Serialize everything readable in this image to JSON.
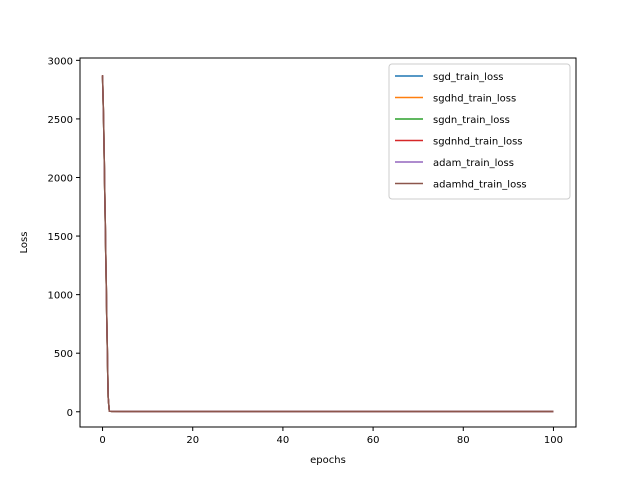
{
  "chart_data": {
    "type": "line",
    "title": "",
    "xlabel": "epochs",
    "ylabel": "Loss",
    "xlim": [
      -5,
      105
    ],
    "ylim": [
      -130,
      3020
    ],
    "xticks": [
      0,
      20,
      40,
      60,
      80,
      100
    ],
    "yticks": [
      0,
      500,
      1000,
      1500,
      2000,
      2500,
      3000
    ],
    "grid": false,
    "legend_position": "top-right",
    "series": [
      {
        "name": "sgd_train_loss",
        "color": "#1f77b4",
        "x": [
          0,
          0.25,
          0.5,
          0.75,
          1,
          1.25,
          1.5,
          2,
          5,
          10,
          20,
          40,
          60,
          80,
          100
        ],
        "y": [
          2860,
          2450,
          1850,
          1250,
          650,
          120,
          5,
          3,
          2,
          2,
          2,
          2,
          2,
          2,
          2
        ]
      },
      {
        "name": "sgdhd_train_loss",
        "color": "#ff7f0e",
        "x": [
          0,
          0.25,
          0.5,
          0.75,
          1,
          1.25,
          1.5,
          2,
          5,
          10,
          20,
          40,
          60,
          80,
          100
        ],
        "y": [
          2870,
          2460,
          1860,
          1260,
          660,
          125,
          5,
          3,
          2,
          2,
          2,
          2,
          2,
          2,
          2
        ]
      },
      {
        "name": "sgdn_train_loss",
        "color": "#2ca02c",
        "x": [
          0,
          0.25,
          0.5,
          0.75,
          1,
          1.25,
          1.5,
          2,
          5,
          10,
          20,
          40,
          60,
          80,
          100
        ],
        "y": [
          2865,
          2455,
          1855,
          1255,
          655,
          122,
          5,
          3,
          2,
          2,
          2,
          2,
          2,
          2,
          2
        ]
      },
      {
        "name": "sgdnhd_train_loss",
        "color": "#d62728",
        "x": [
          0,
          0.25,
          0.5,
          0.75,
          1,
          1.25,
          1.5,
          2,
          5,
          10,
          20,
          40,
          60,
          80,
          100
        ],
        "y": [
          2868,
          2458,
          1858,
          1258,
          658,
          124,
          5,
          3,
          2,
          2,
          2,
          2,
          2,
          2,
          2
        ]
      },
      {
        "name": "adam_train_loss",
        "color": "#9467bd",
        "x": [
          0,
          0.25,
          0.5,
          0.75,
          1,
          1.25,
          1.5,
          2,
          5,
          10,
          20,
          40,
          60,
          80,
          100
        ],
        "y": [
          2872,
          2462,
          1862,
          1262,
          662,
          126,
          6,
          3,
          2,
          2,
          2,
          2,
          2,
          2,
          2
        ]
      },
      {
        "name": "adamhd_train_loss",
        "color": "#8c564b",
        "x": [
          0,
          0.25,
          0.5,
          0.75,
          1,
          1.25,
          1.5,
          2,
          5,
          10,
          20,
          40,
          60,
          80,
          100
        ],
        "y": [
          2875,
          2465,
          1865,
          1265,
          665,
          128,
          6,
          3,
          2,
          2,
          2,
          2,
          2,
          2,
          2
        ]
      }
    ]
  }
}
